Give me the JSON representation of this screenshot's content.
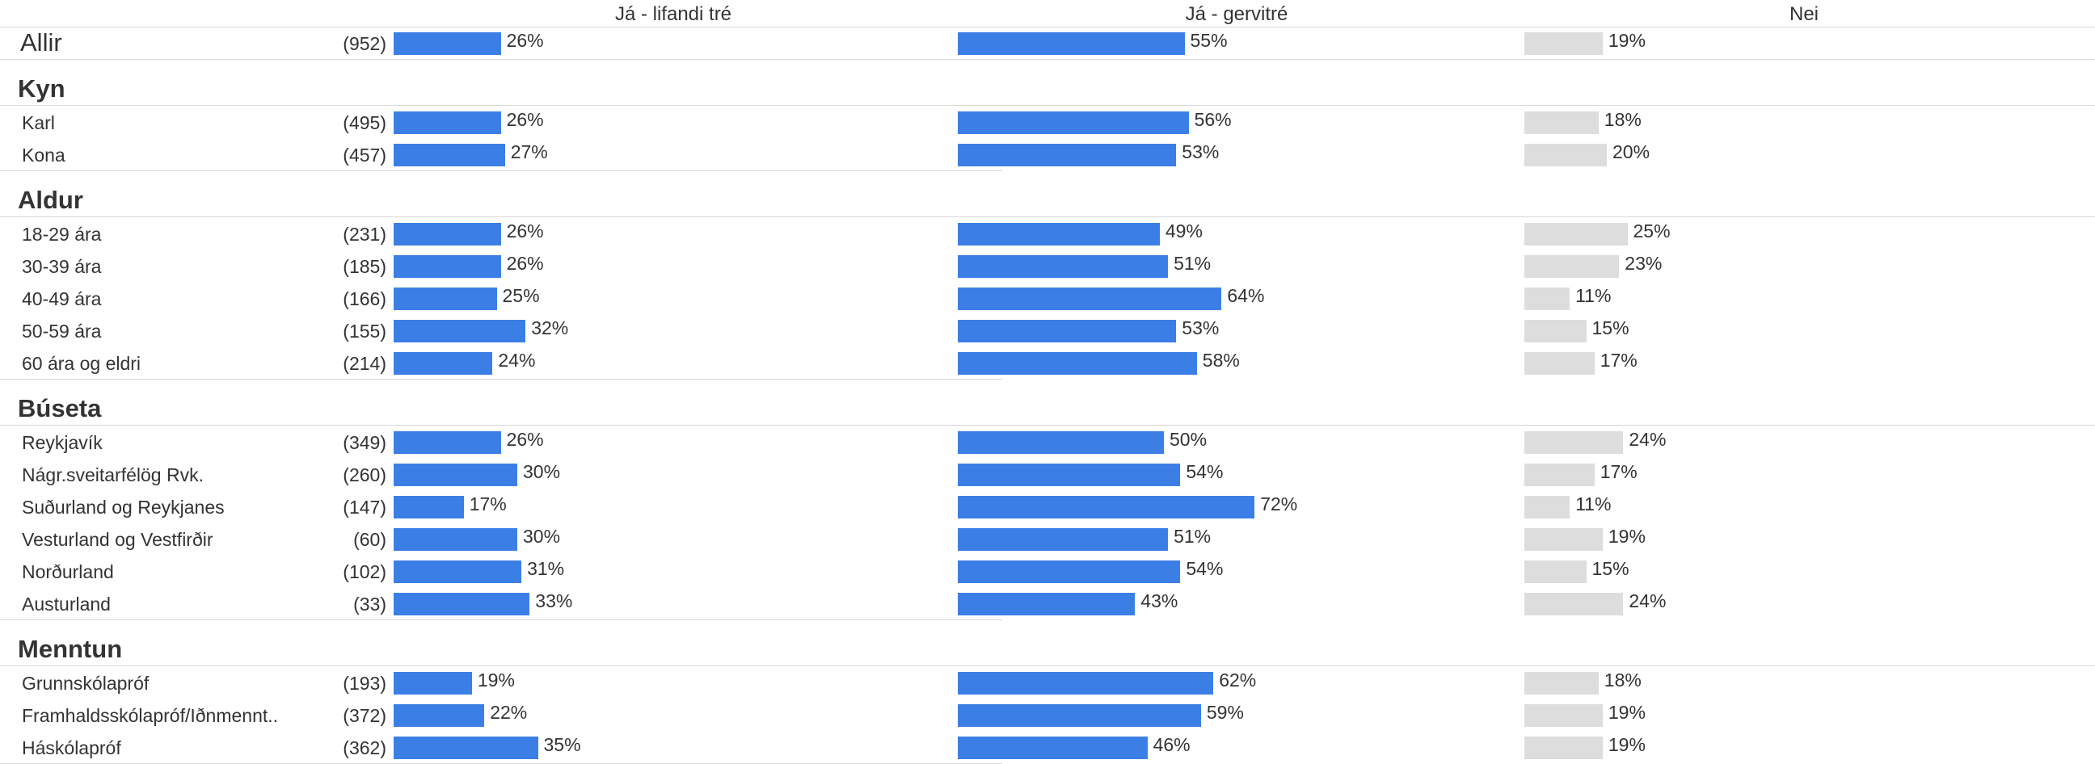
{
  "chart_data": {
    "type": "bar",
    "orientation": "horizontal",
    "columns": [
      "Já - lifandi tré",
      "Já - gervitré",
      "Nei"
    ],
    "colors": {
      "Já - lifandi tré": "#3b7fe6",
      "Já - gervitré": "#3b7fe6",
      "Nei": "#dddddd"
    },
    "value_suffix": "%",
    "sections": [
      {
        "title": "",
        "rows": [
          {
            "label": "Allir",
            "n": "(952)",
            "values": [
              26,
              55,
              19
            ]
          }
        ]
      },
      {
        "title": "Kyn",
        "rows": [
          {
            "label": "Karl",
            "n": "(495)",
            "values": [
              26,
              56,
              18
            ]
          },
          {
            "label": "Kona",
            "n": "(457)",
            "values": [
              27,
              53,
              20
            ]
          }
        ]
      },
      {
        "title": "Aldur",
        "rows": [
          {
            "label": "18-29 ára",
            "n": "(231)",
            "values": [
              26,
              49,
              25
            ]
          },
          {
            "label": "30-39 ára",
            "n": "(185)",
            "values": [
              26,
              51,
              23
            ]
          },
          {
            "label": "40-49 ára",
            "n": "(166)",
            "values": [
              25,
              64,
              11
            ]
          },
          {
            "label": "50-59 ára",
            "n": "(155)",
            "values": [
              32,
              53,
              15
            ]
          },
          {
            "label": "60 ára og eldri",
            "n": "(214)",
            "values": [
              24,
              58,
              17
            ]
          }
        ]
      },
      {
        "title": "Búseta",
        "rows": [
          {
            "label": "Reykjavík",
            "n": "(349)",
            "values": [
              26,
              50,
              24
            ]
          },
          {
            "label": "Nágr.sveitarfélög Rvk.",
            "n": "(260)",
            "values": [
              30,
              54,
              17
            ]
          },
          {
            "label": "Suðurland og Reykjanes",
            "n": "(147)",
            "values": [
              17,
              72,
              11
            ]
          },
          {
            "label": "Vesturland og Vestfirðir",
            "n": "(60)",
            "values": [
              30,
              51,
              19
            ]
          },
          {
            "label": "Norðurland",
            "n": "(102)",
            "values": [
              31,
              54,
              15
            ]
          },
          {
            "label": "Austurland",
            "n": "(33)",
            "values": [
              33,
              43,
              24
            ]
          }
        ]
      },
      {
        "title": "Menntun",
        "rows": [
          {
            "label": "Grunnskólapróf",
            "n": "(193)",
            "values": [
              19,
              62,
              18
            ]
          },
          {
            "label": "Framhaldsskólapróf/Iðnmennt..",
            "n": "(372)",
            "values": [
              22,
              59,
              19
            ]
          },
          {
            "label": "Háskólapróf",
            "n": "(362)",
            "values": [
              35,
              46,
              19
            ]
          }
        ]
      }
    ]
  }
}
